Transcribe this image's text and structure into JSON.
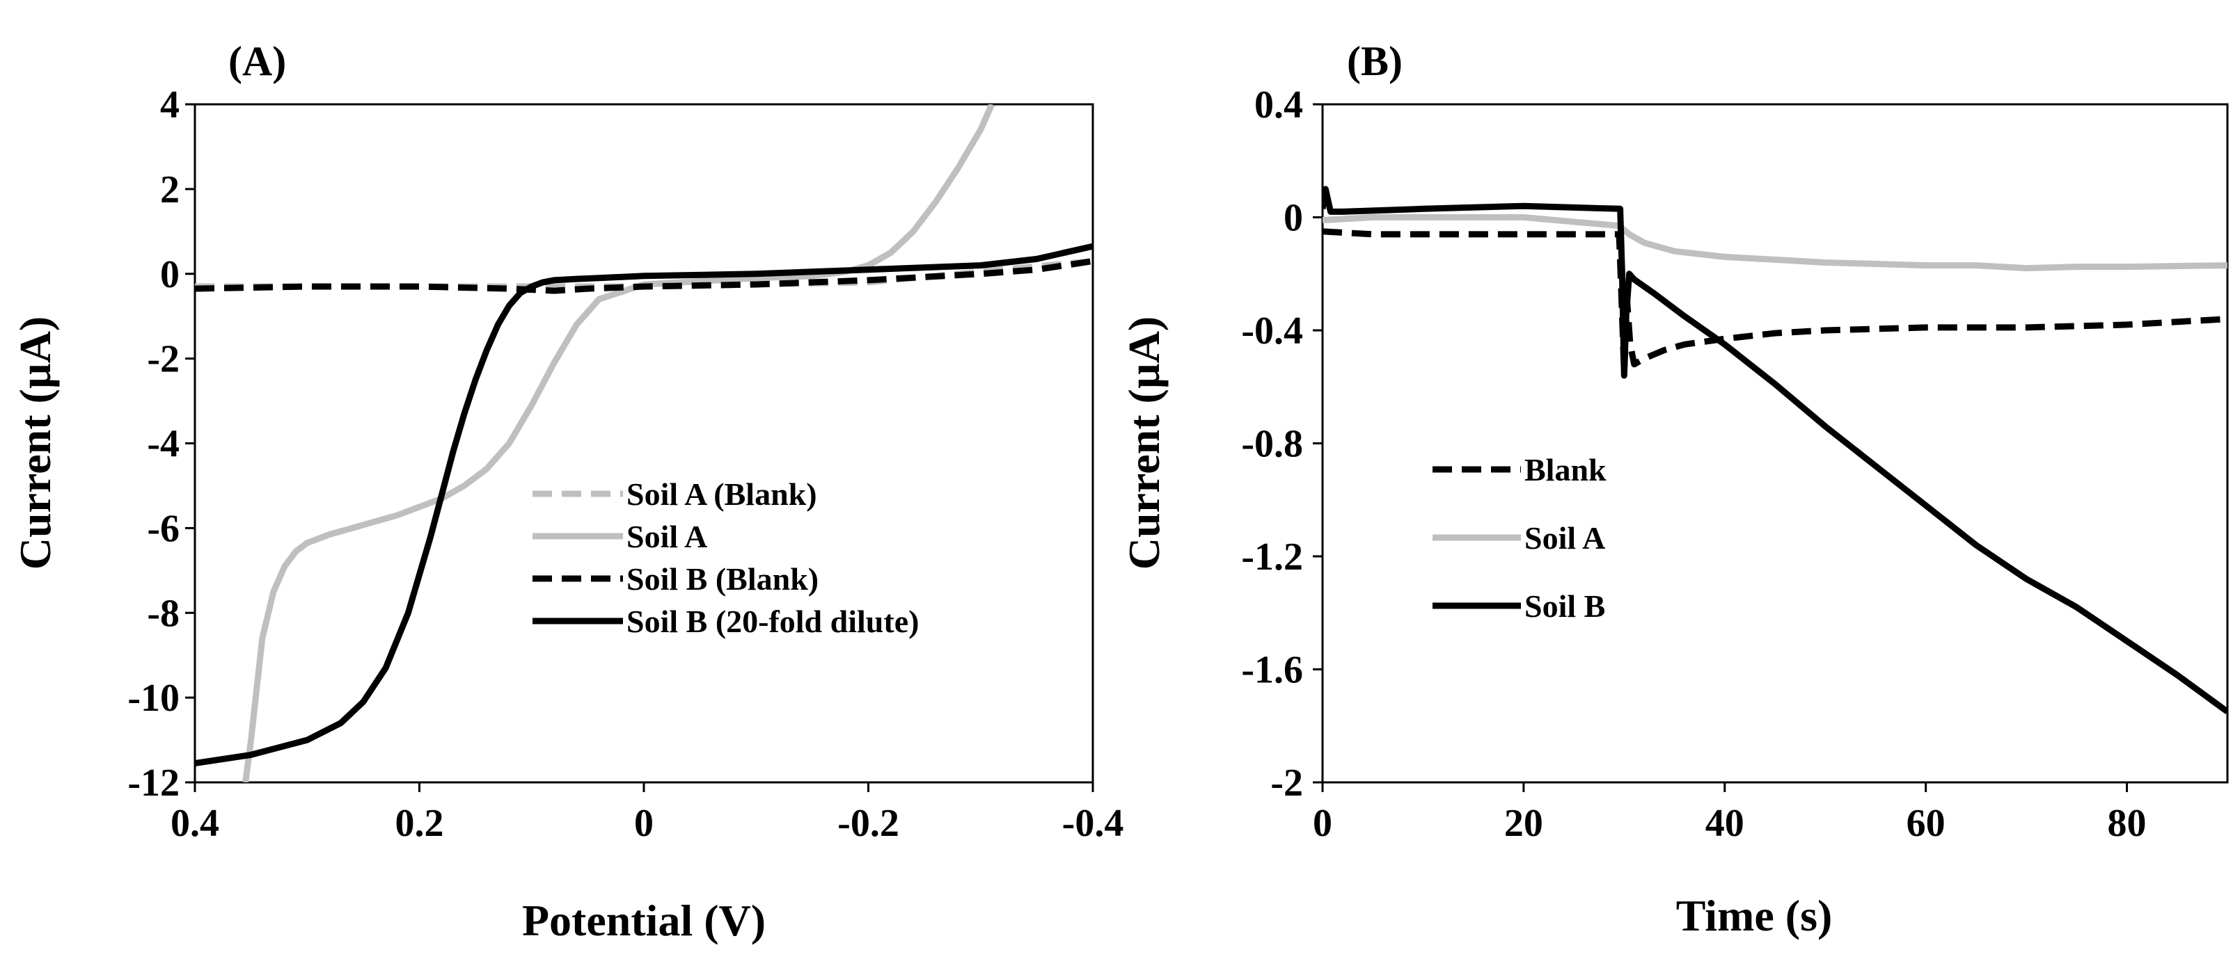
{
  "chart_data": [
    {
      "panel_label": "(A)",
      "type": "line",
      "title": "",
      "xlabel": "Potential (V)",
      "ylabel": "Current (µA)",
      "xlim": [
        0.4,
        -0.4
      ],
      "ylim": [
        -12,
        4
      ],
      "x_ticks": [
        0.4,
        0.2,
        0,
        -0.2,
        -0.4
      ],
      "x_tick_labels": [
        "0.4",
        "0.2",
        "0",
        "-0.2",
        "-0.4"
      ],
      "y_ticks": [
        4,
        2,
        0,
        -2,
        -4,
        -6,
        -8,
        -10,
        -12
      ],
      "y_tick_labels": [
        "4",
        "2",
        "0",
        "-2",
        "-4",
        "-6",
        "-8",
        "-10",
        "-12"
      ],
      "legend_position": "center-right",
      "series": [
        {
          "name": "Soil A (Blank)",
          "color": "#bfbfbf",
          "dash": true,
          "x": [
            0.4,
            0.2,
            0.0,
            -0.2,
            -0.4
          ],
          "y": [
            -0.3,
            -0.3,
            -0.3,
            -0.2,
            0.3
          ]
        },
        {
          "name": "Soil A",
          "color": "#bfbfbf",
          "dash": false,
          "x": [
            0.355,
            0.35,
            0.345,
            0.34,
            0.33,
            0.32,
            0.31,
            0.3,
            0.28,
            0.26,
            0.24,
            0.22,
            0.2,
            0.18,
            0.16,
            0.14,
            0.12,
            0.1,
            0.08,
            0.06,
            0.04,
            0.0,
            -0.1,
            -0.15,
            -0.18,
            -0.2,
            -0.22,
            -0.24,
            -0.26,
            -0.28,
            -0.3,
            -0.31
          ],
          "y": [
            -12.0,
            -11.0,
            -9.8,
            -8.6,
            -7.5,
            -6.9,
            -6.55,
            -6.35,
            -6.15,
            -6.0,
            -5.85,
            -5.7,
            -5.5,
            -5.3,
            -5.0,
            -4.6,
            -4.0,
            -3.1,
            -2.1,
            -1.2,
            -0.6,
            -0.25,
            -0.1,
            -0.05,
            0.05,
            0.2,
            0.5,
            1.0,
            1.7,
            2.5,
            3.4,
            4.0
          ]
        },
        {
          "name": "Soil B (Blank)",
          "color": "#000000",
          "dash": true,
          "x": [
            0.4,
            0.3,
            0.2,
            0.12,
            0.08,
            0.05,
            0.0,
            -0.1,
            -0.2,
            -0.3,
            -0.35,
            -0.4
          ],
          "y": [
            -0.35,
            -0.3,
            -0.3,
            -0.35,
            -0.4,
            -0.35,
            -0.3,
            -0.25,
            -0.15,
            0.0,
            0.1,
            0.3
          ]
        },
        {
          "name": "Soil B (20-fold dilute)",
          "color": "#000000",
          "dash": false,
          "x": [
            0.4,
            0.35,
            0.3,
            0.27,
            0.25,
            0.23,
            0.21,
            0.2,
            0.19,
            0.18,
            0.17,
            0.16,
            0.15,
            0.14,
            0.13,
            0.12,
            0.11,
            0.1,
            0.09,
            0.08,
            0.06,
            0.04,
            0.0,
            -0.1,
            -0.2,
            -0.3,
            -0.35,
            -0.4
          ],
          "y": [
            -11.55,
            -11.35,
            -11.0,
            -10.6,
            -10.1,
            -9.3,
            -8.0,
            -7.1,
            -6.2,
            -5.2,
            -4.2,
            -3.3,
            -2.5,
            -1.8,
            -1.2,
            -0.75,
            -0.45,
            -0.3,
            -0.2,
            -0.15,
            -0.12,
            -0.1,
            -0.05,
            0.0,
            0.1,
            0.2,
            0.35,
            0.65
          ]
        }
      ]
    },
    {
      "panel_label": "(B)",
      "type": "line",
      "title": "",
      "xlabel": "Time (s)",
      "ylabel": "Current (µA)",
      "xlim": [
        0,
        90
      ],
      "ylim": [
        -2,
        0.4
      ],
      "x_ticks": [
        0,
        20,
        40,
        60,
        80
      ],
      "x_tick_labels": [
        "0",
        "20",
        "40",
        "60",
        "80"
      ],
      "y_ticks": [
        0.4,
        0,
        -0.4,
        -0.8,
        -1.2,
        -1.6,
        -2
      ],
      "y_tick_labels": [
        "0.4",
        "0",
        "-0.4",
        "-0.8",
        "-1.2",
        "-1.6",
        "-2"
      ],
      "legend_position": "center-left",
      "series": [
        {
          "name": "Blank",
          "color": "#000000",
          "dash": true,
          "x": [
            0,
            5,
            10,
            20,
            29.5,
            29.7,
            30.0,
            30.3,
            30.6,
            31,
            32,
            34,
            36,
            40,
            45,
            50,
            60,
            70,
            80,
            90
          ],
          "y": [
            -0.05,
            -0.06,
            -0.06,
            -0.06,
            -0.06,
            -0.25,
            -0.55,
            -0.3,
            -0.45,
            -0.52,
            -0.5,
            -0.47,
            -0.45,
            -0.43,
            -0.41,
            -0.4,
            -0.39,
            -0.39,
            -0.38,
            -0.36
          ]
        },
        {
          "name": "Soil A",
          "color": "#bfbfbf",
          "dash": false,
          "x": [
            0,
            5,
            10,
            20,
            29.5,
            30.5,
            32,
            35,
            40,
            45,
            50,
            55,
            60,
            65,
            70,
            75,
            80,
            90
          ],
          "y": [
            -0.01,
            0.0,
            0.0,
            0.0,
            -0.03,
            -0.06,
            -0.09,
            -0.12,
            -0.14,
            -0.15,
            -0.16,
            -0.165,
            -0.17,
            -0.17,
            -0.18,
            -0.175,
            -0.175,
            -0.17
          ]
        },
        {
          "name": "Soil B",
          "color": "#000000",
          "dash": false,
          "x": [
            0,
            0.3,
            0.8,
            2,
            10,
            20,
            29.6,
            29.8,
            30.0,
            30.2,
            30.5,
            31,
            33,
            36,
            40,
            45,
            50,
            55,
            60,
            65,
            70,
            75,
            80,
            85,
            90
          ],
          "y": [
            0.03,
            0.1,
            0.02,
            0.02,
            0.03,
            0.04,
            0.03,
            -0.2,
            -0.56,
            -0.35,
            -0.2,
            -0.22,
            -0.27,
            -0.35,
            -0.45,
            -0.59,
            -0.74,
            -0.88,
            -1.02,
            -1.16,
            -1.28,
            -1.38,
            -1.5,
            -1.62,
            -1.75
          ]
        }
      ]
    }
  ]
}
